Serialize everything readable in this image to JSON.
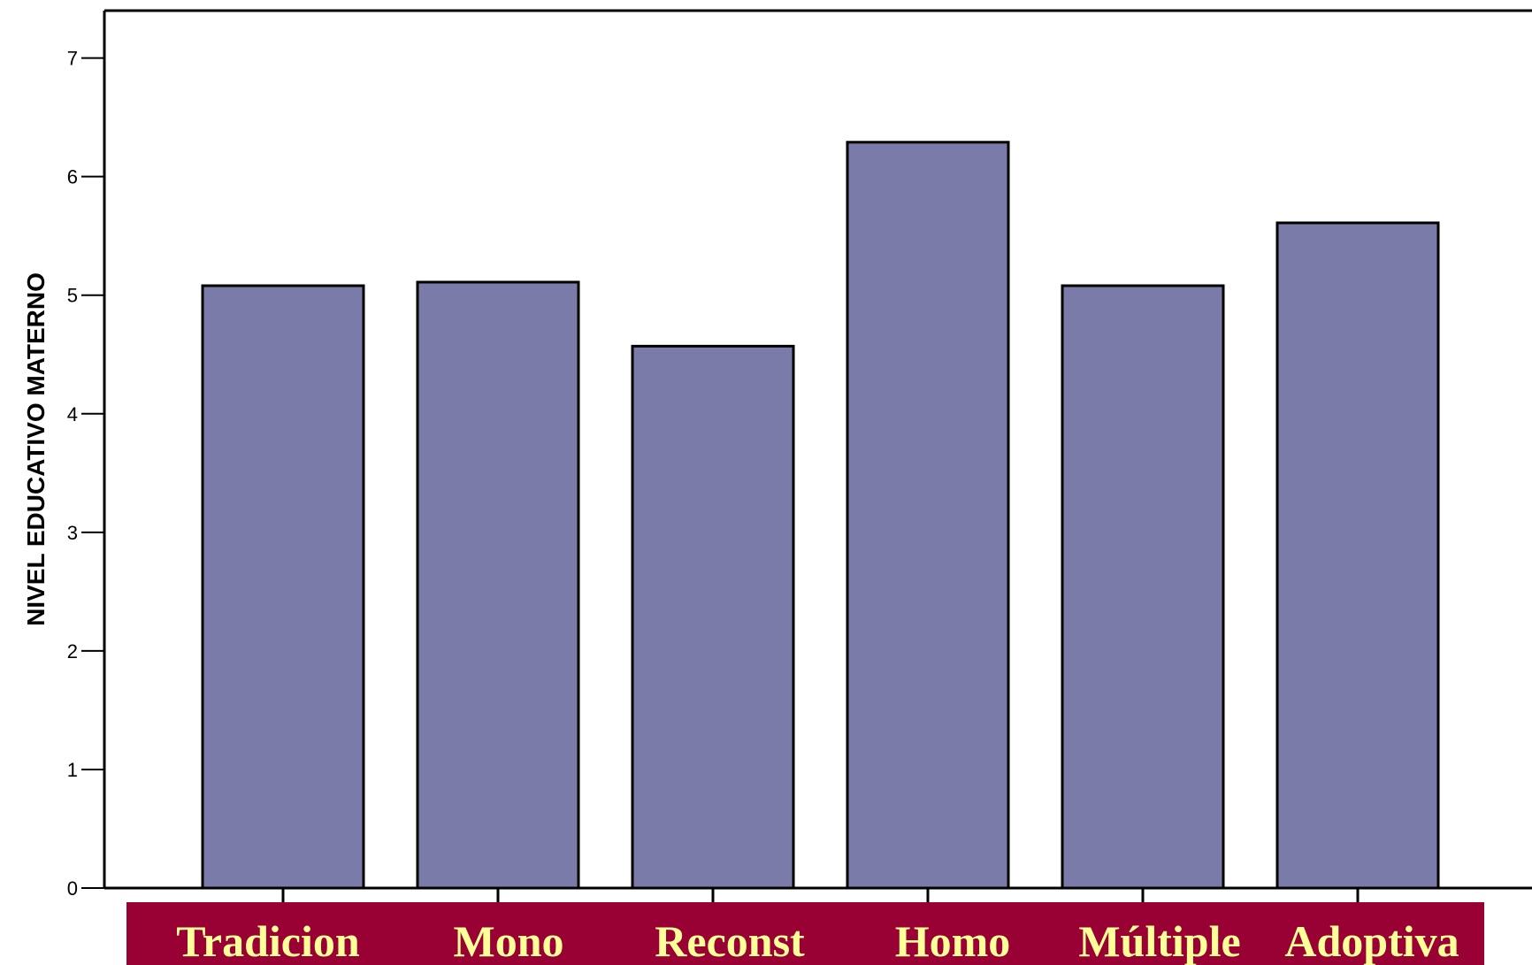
{
  "chart_data": {
    "type": "bar",
    "categories": [
      "Tradicion",
      "Mono",
      "Reconst",
      "Homo",
      "Múltiple",
      "Adoptiva"
    ],
    "values": [
      5.08,
      5.11,
      4.57,
      6.29,
      5.08,
      5.61
    ],
    "title": "",
    "xlabel": "",
    "ylabel": "NIVEL EDUCATIVO MATERNO",
    "ylim": [
      0,
      7.4
    ],
    "yticks": [
      0,
      1,
      2,
      3,
      4,
      5,
      6,
      7
    ],
    "grid": false,
    "colors": {
      "bar_fill": "#7a7ba8",
      "bar_stroke": "#000000",
      "category_band": "#990033",
      "category_text": "#ffff99"
    }
  }
}
